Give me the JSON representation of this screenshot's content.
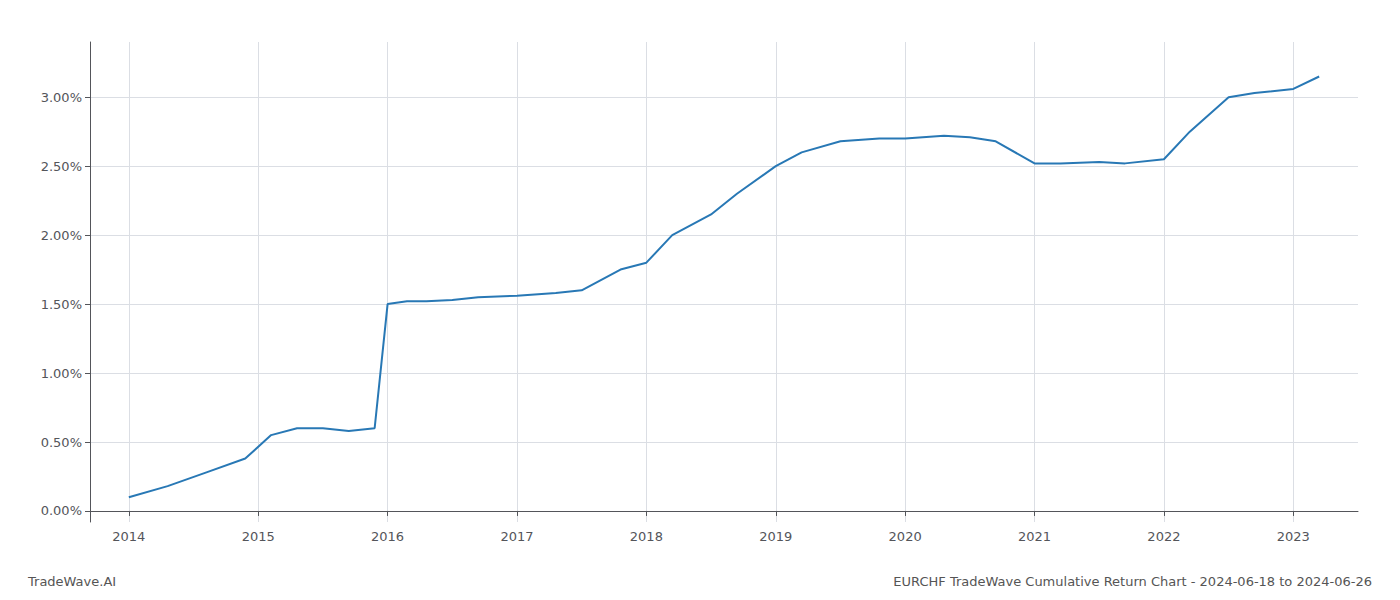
{
  "chart_data": {
    "type": "line",
    "x": [
      2014.0,
      2014.3,
      2014.6,
      2014.9,
      2015.1,
      2015.3,
      2015.5,
      2015.7,
      2015.9,
      2016.0,
      2016.15,
      2016.3,
      2016.5,
      2016.7,
      2017.0,
      2017.3,
      2017.5,
      2017.8,
      2018.0,
      2018.2,
      2018.5,
      2018.7,
      2019.0,
      2019.2,
      2019.5,
      2019.8,
      2020.0,
      2020.3,
      2020.5,
      2020.7,
      2021.0,
      2021.2,
      2021.5,
      2021.7,
      2022.0,
      2022.2,
      2022.5,
      2022.7,
      2023.0,
      2023.2
    ],
    "values": [
      0.001,
      0.0018,
      0.0028,
      0.0038,
      0.0055,
      0.006,
      0.006,
      0.0058,
      0.006,
      0.015,
      0.0152,
      0.0152,
      0.0153,
      0.0155,
      0.0156,
      0.0158,
      0.016,
      0.0175,
      0.018,
      0.02,
      0.0215,
      0.023,
      0.025,
      0.026,
      0.0268,
      0.027,
      0.027,
      0.0272,
      0.0271,
      0.0268,
      0.0252,
      0.0252,
      0.0253,
      0.0252,
      0.0255,
      0.0275,
      0.03,
      0.0303,
      0.0306,
      0.0315
    ],
    "color": "#2878b5",
    "xlim": [
      2013.7,
      2023.5
    ],
    "ylim": [
      -0.0008,
      0.034
    ],
    "xticks": [
      2014,
      2015,
      2016,
      2017,
      2018,
      2019,
      2020,
      2021,
      2022,
      2023
    ],
    "yticks": [
      {
        "value": 0.0,
        "label": "0.00%"
      },
      {
        "value": 0.005,
        "label": "0.50%"
      },
      {
        "value": 0.01,
        "label": "1.00%"
      },
      {
        "value": 0.015,
        "label": "1.50%"
      },
      {
        "value": 0.02,
        "label": "2.00%"
      },
      {
        "value": 0.025,
        "label": "2.50%"
      },
      {
        "value": 0.03,
        "label": "3.00%"
      }
    ],
    "grid": true,
    "annotations": [
      "TradeWave.AI",
      "EURCHF TradeWave Cumulative Return Chart - 2024-06-18 to 2024-06-26"
    ]
  }
}
